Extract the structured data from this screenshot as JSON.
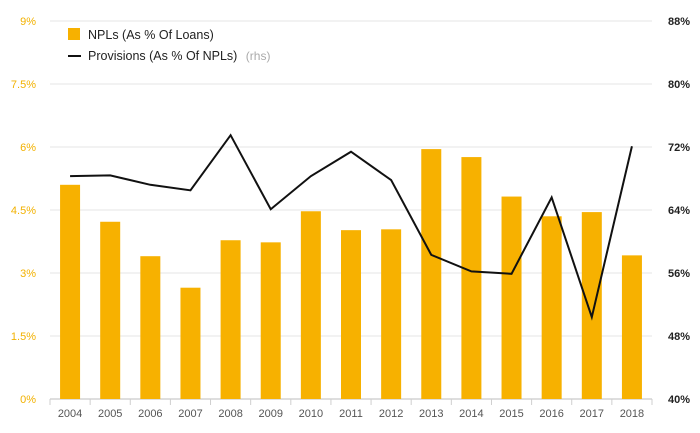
{
  "chart_data": {
    "type": "bar+line",
    "title": "",
    "categories": [
      "2004",
      "2005",
      "2006",
      "2007",
      "2008",
      "2009",
      "2010",
      "2011",
      "2012",
      "2013",
      "2014",
      "2015",
      "2016",
      "2017",
      "2018"
    ],
    "series": [
      {
        "name": "NPLs (As % Of Loans)",
        "type": "bar",
        "axis": "left",
        "color": "#f7b100",
        "values": [
          5.1,
          4.22,
          3.4,
          2.65,
          3.78,
          3.73,
          4.47,
          4.02,
          4.04,
          5.95,
          5.76,
          4.82,
          4.35,
          4.45,
          3.42
        ]
      },
      {
        "name": "Provisions (As % Of NPLs)",
        "suffix": "(rhs)",
        "type": "line",
        "axis": "right",
        "color": "#111111",
        "values": [
          68.3,
          68.4,
          67.2,
          66.5,
          73.5,
          64.1,
          68.3,
          71.4,
          67.8,
          58.3,
          56.2,
          55.9,
          65.6,
          50.4,
          72.1
        ]
      }
    ],
    "y_left": {
      "lim": [
        0,
        9
      ],
      "ticks": [
        0,
        1.5,
        3,
        4.5,
        6,
        7.5,
        9
      ],
      "tick_labels": [
        "0%",
        "1.5%",
        "3%",
        "4.5%",
        "6%",
        "7.5%",
        "9%"
      ]
    },
    "y_right": {
      "lim": [
        40,
        88
      ],
      "ticks": [
        40,
        48,
        56,
        64,
        72,
        80,
        88
      ],
      "tick_labels": [
        "40%",
        "48%",
        "56%",
        "64%",
        "72%",
        "80%",
        "88%"
      ]
    },
    "grid": true,
    "legend_position": "top-left"
  }
}
